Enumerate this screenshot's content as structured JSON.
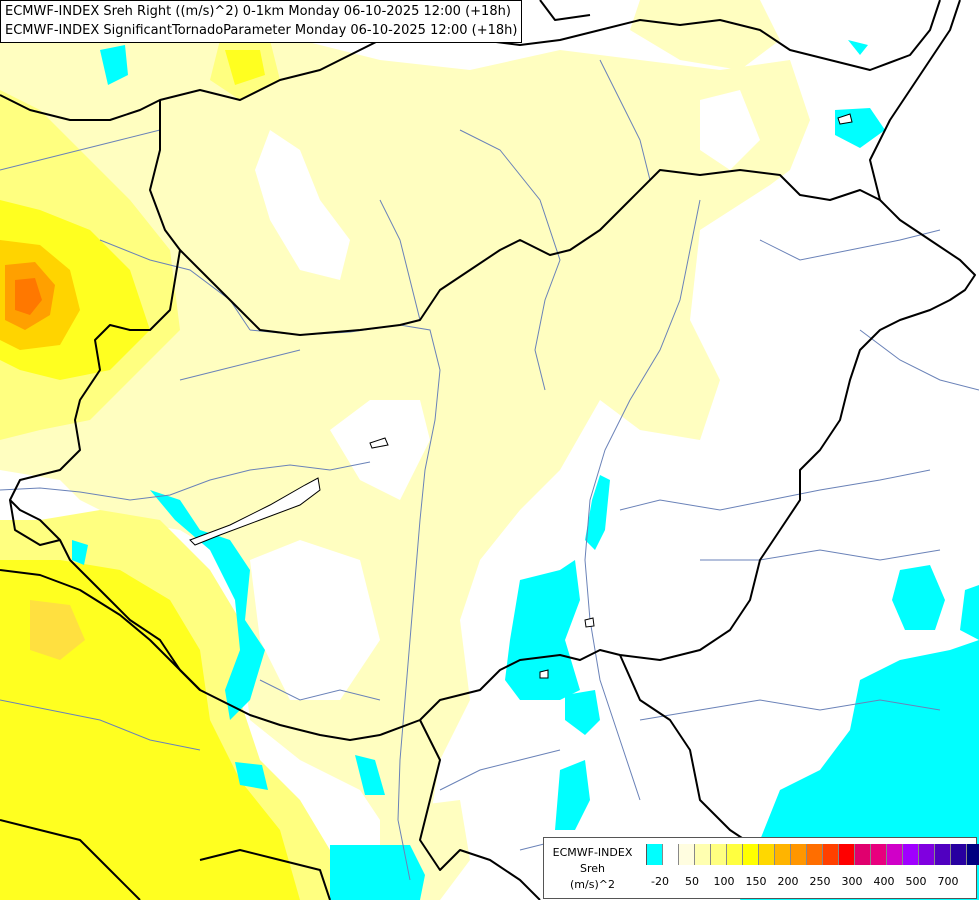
{
  "title": {
    "line1": "ECMWF-INDEX Sreh Right ((m/s)^2) 0-1km Monday 06-10-2025 12:00 (+18h)",
    "line2": "ECMWF-INDEX SignificantTornadoParameter Monday 06-10-2025 12:00 (+18h)"
  },
  "legend": {
    "line1": "ECMWF-INDEX",
    "line2": "Sreh",
    "line3": "(m/s)^2",
    "colors": [
      "#00ffff",
      "#ffffff",
      "#fffde0",
      "#ffffb0",
      "#ffff80",
      "#ffff40",
      "#ffff00",
      "#ffd800",
      "#ffb400",
      "#ff9600",
      "#ff6e00",
      "#ff4000",
      "#ff0000",
      "#e0006e",
      "#e8007e",
      "#d000c8",
      "#a000ff",
      "#8000e0",
      "#5000c0",
      "#2800a0",
      "#000080"
    ],
    "ticks": [
      "-20",
      "50",
      "100",
      "150",
      "200",
      "250",
      "300",
      "400",
      "500",
      "700"
    ]
  },
  "colors": {
    "light_yellow": "#fffec0",
    "yellow": "#ffff60",
    "bright_yellow": "#ffff00",
    "gold": "#ffd400",
    "orange": "#ff9600",
    "dark_orange": "#ff7000",
    "cyan": "#00ffff",
    "border": "#000000",
    "river": "#6a82b8"
  }
}
